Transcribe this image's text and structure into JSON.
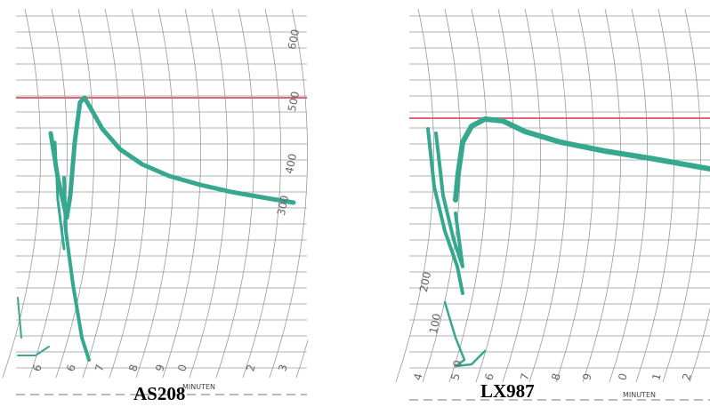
{
  "panels": [
    {
      "label": "AS208",
      "axis_title": "MINUTEN",
      "scale_labels": [
        "600",
        "500",
        "400",
        "300"
      ],
      "minute_labels": [
        "6",
        "6",
        "7",
        "8",
        "9",
        "0",
        "2",
        "3"
      ]
    },
    {
      "label": "LX987",
      "axis_title": "MINUTEN",
      "scale_labels": [
        "200",
        "100",
        "0"
      ],
      "minute_labels": [
        "4",
        "5",
        "6",
        "7",
        "8",
        "9",
        "0",
        "1",
        "2"
      ]
    }
  ]
}
